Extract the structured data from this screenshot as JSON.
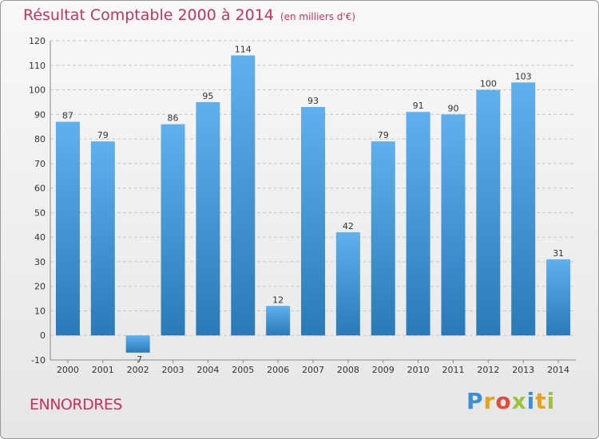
{
  "header": {
    "title": "Résultat Comptable 2000 à 2014",
    "subtitle": "(en milliers d'€)"
  },
  "footer": {
    "commune": "ENNORDRES",
    "logo_letters": [
      "P",
      "r",
      "o",
      "x",
      "i",
      "t",
      "i"
    ],
    "logo_colors": [
      "#3a8fd6",
      "#e8a21a",
      "#e04b3a",
      "#9bc43c",
      "#3a8fd6",
      "#e8a21a",
      "#9bc43c"
    ]
  },
  "colors": {
    "title": "#c8335b",
    "bar_light": "#5fb0ec",
    "bar_dark": "#2a7ab8",
    "grid": "#c8c8c8",
    "axis_text": "#333333"
  },
  "chart_data": {
    "type": "bar",
    "title": "Résultat Comptable 2000 à 2014",
    "xlabel": "",
    "ylabel": "",
    "categories": [
      "2000",
      "2001",
      "2002",
      "2003",
      "2004",
      "2005",
      "2006",
      "2007",
      "2008",
      "2009",
      "2010",
      "2011",
      "2012",
      "2013",
      "2014"
    ],
    "values": [
      87,
      79,
      -7,
      86,
      95,
      114,
      12,
      93,
      42,
      79,
      91,
      90,
      100,
      103,
      31
    ],
    "ylim": [
      -10,
      120
    ],
    "yticks": [
      -10,
      0,
      10,
      20,
      30,
      40,
      50,
      60,
      70,
      80,
      90,
      100,
      110,
      120
    ],
    "grid": true
  }
}
